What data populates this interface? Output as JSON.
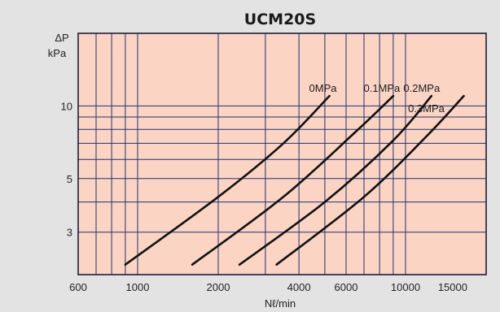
{
  "chart_data": {
    "type": "line",
    "title": "UCM20S",
    "xlabel": "Nℓ/min",
    "ylabel_top": "ΔP",
    "ylabel_bottom": "kPa",
    "x_scale": "log",
    "y_scale": "log",
    "xlim": [
      600,
      20000
    ],
    "ylim": [
      2,
      20
    ],
    "x_ticks": [
      {
        "value": 600,
        "label": "600"
      },
      {
        "value": 1000,
        "label": "1000"
      },
      {
        "value": 2000,
        "label": "2000"
      },
      {
        "value": 4000,
        "label": "4000"
      },
      {
        "value": 6000,
        "label": "6000"
      },
      {
        "value": 10000,
        "label": "10000"
      },
      {
        "value": 15000,
        "label": "15000"
      }
    ],
    "y_ticks": [
      {
        "value": 3,
        "label": "3"
      },
      {
        "value": 5,
        "label": "5"
      },
      {
        "value": 10,
        "label": "10"
      }
    ],
    "x_grid": [
      700,
      800,
      900,
      1000,
      2000,
      3000,
      4000,
      5000,
      6000,
      7000,
      8000,
      9000,
      10000,
      20000
    ],
    "y_grid": [
      2,
      3,
      4,
      5,
      6,
      7,
      8,
      9,
      10,
      20
    ],
    "grid": true,
    "series": [
      {
        "name": "0MPa",
        "x": [
          900,
          2000,
          3500,
          5200
        ],
        "y": [
          2.2,
          4.2,
          7.0,
          11.0
        ]
      },
      {
        "name": "0.1MPa",
        "x": [
          1600,
          3500,
          6500,
          9000
        ],
        "y": [
          2.2,
          4.2,
          7.8,
          11.0
        ]
      },
      {
        "name": "0.2MPa",
        "x": [
          2400,
          5000,
          9000,
          12500
        ],
        "y": [
          2.2,
          4.0,
          7.2,
          11.0
        ]
      },
      {
        "name": "0.3MPa",
        "x": [
          3300,
          7000,
          12000,
          16500
        ],
        "y": [
          2.2,
          4.2,
          7.5,
          11.0
        ]
      }
    ],
    "colors": {
      "background": "#e3e3e3",
      "plot": "#fcd4c4",
      "grid": "#1f3070",
      "curve": "#111111"
    }
  }
}
